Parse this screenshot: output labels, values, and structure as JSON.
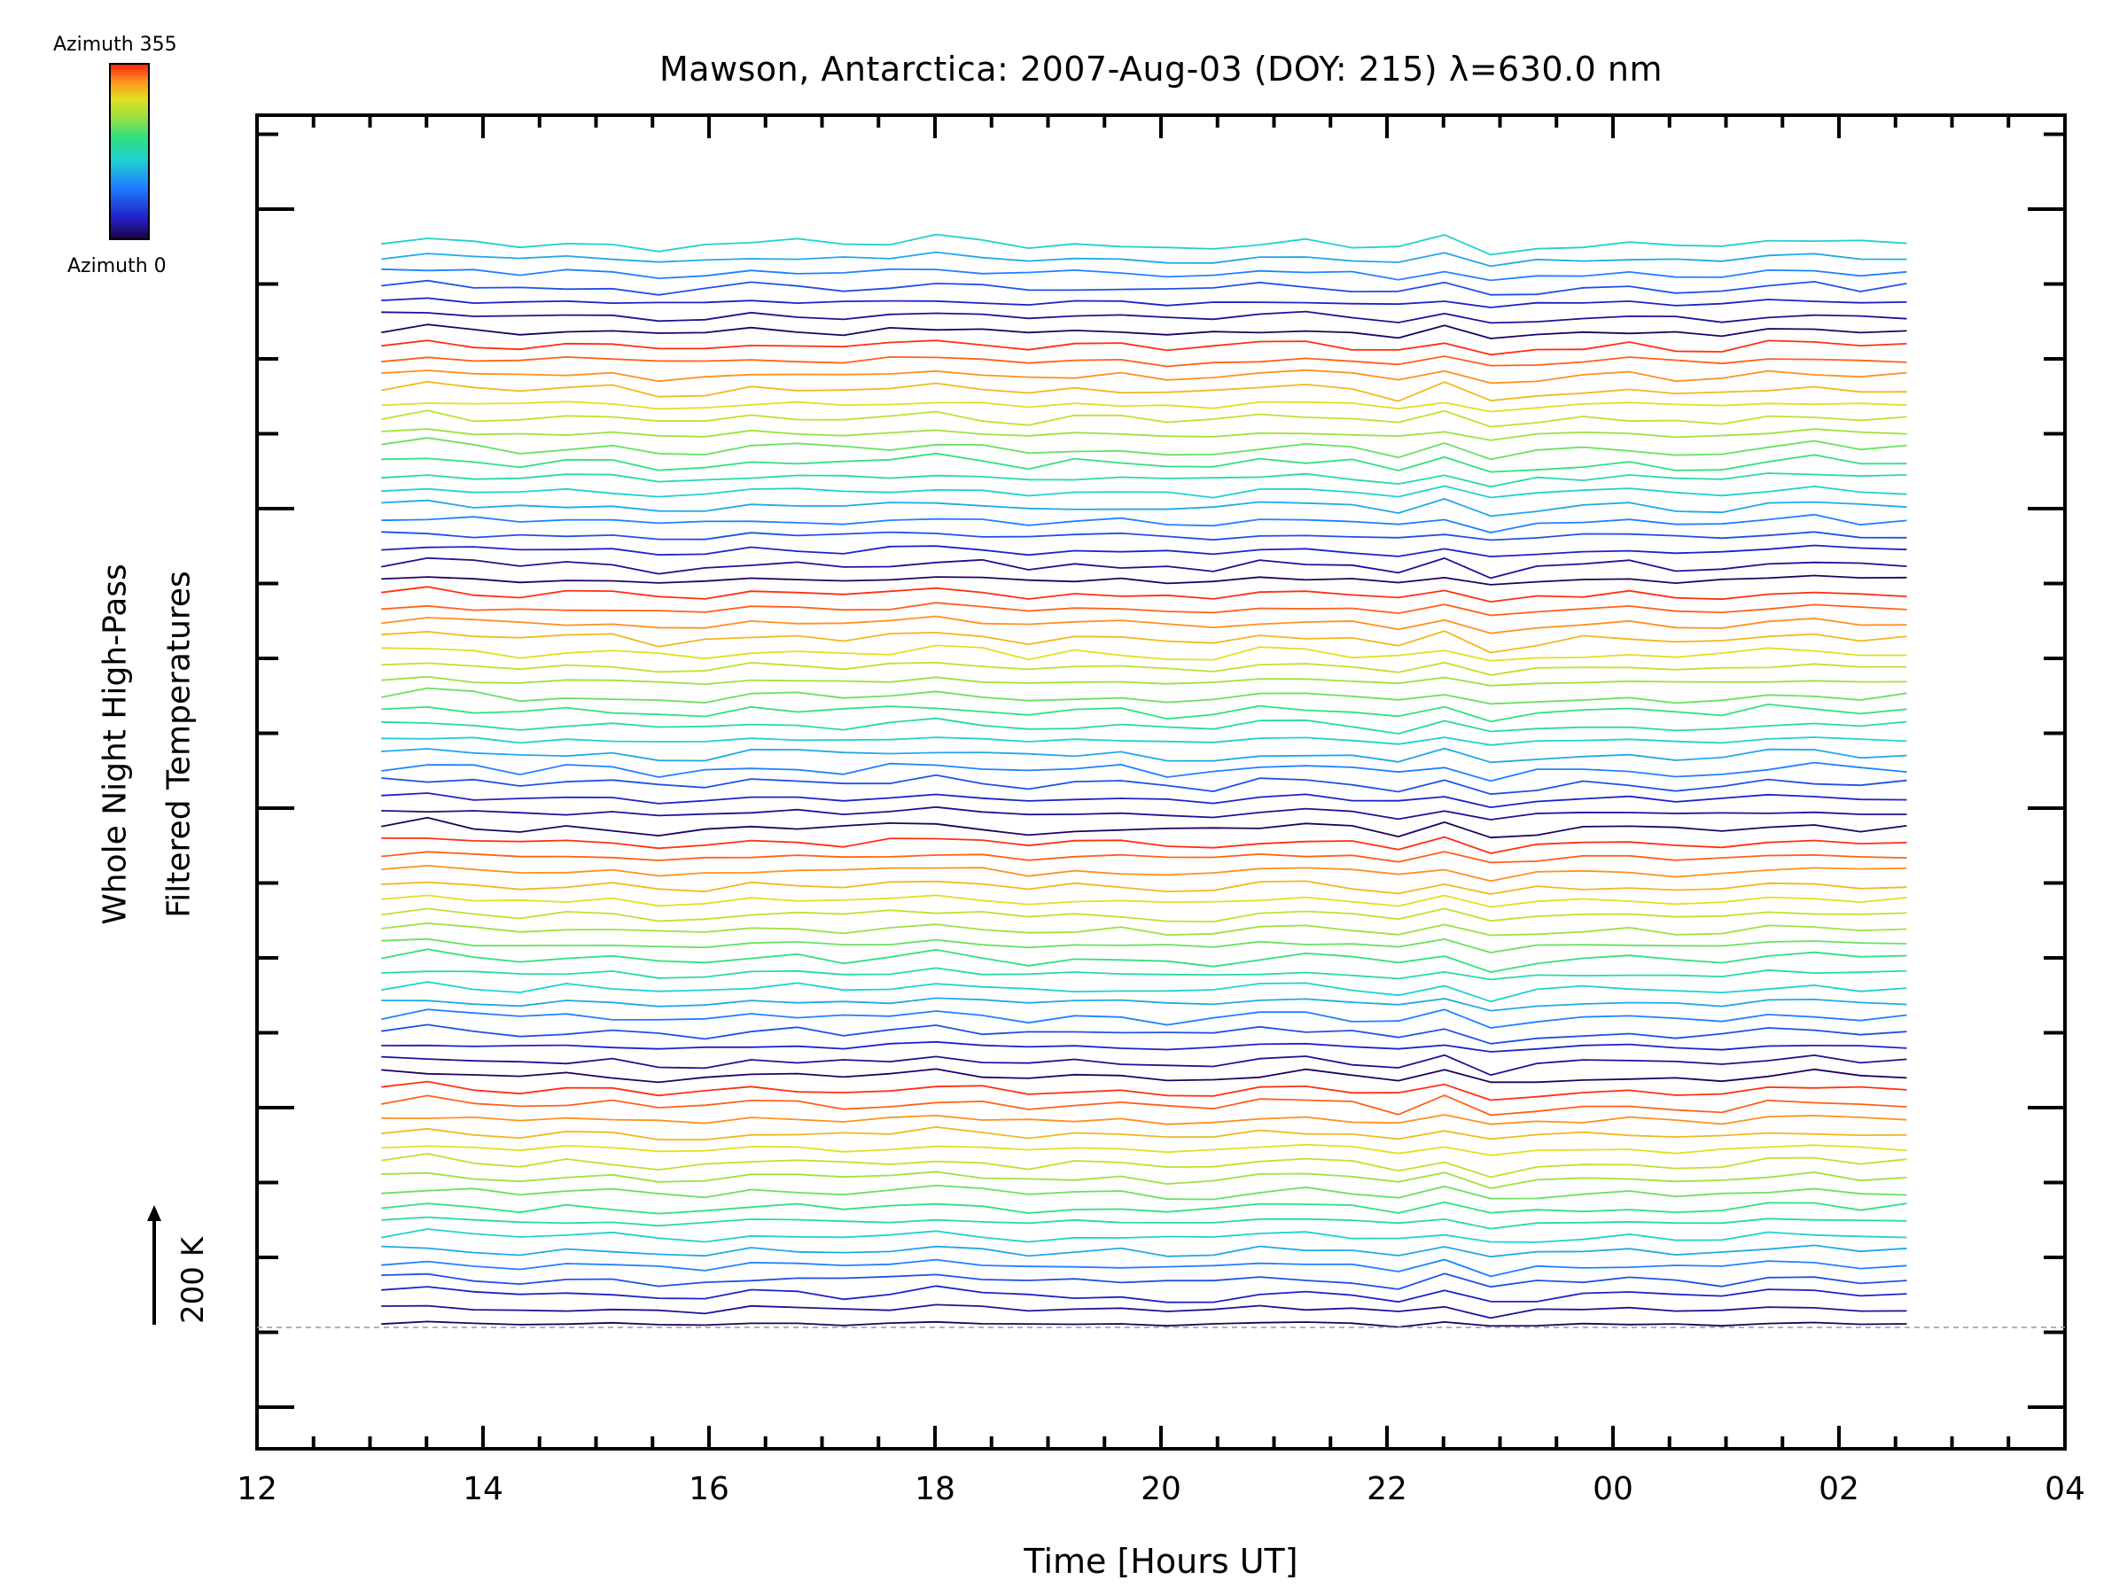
{
  "chart_data": {
    "type": "line",
    "title": "Mawson, Antarctica: 2007-Aug-03 (DOY: 215) λ=630.0 nm",
    "xlabel": "Time [Hours UT]",
    "ylabel": [
      "Whole Night High-Pass",
      "Filtered Temperatures"
    ],
    "x_tick_labels": [
      "12",
      "14",
      "16",
      "18",
      "20",
      "22",
      "00",
      "02",
      "04"
    ],
    "xlim": [
      12,
      28
    ],
    "x_range_hours": [
      13.1,
      26.6
    ],
    "scale_bar": "200 K",
    "colorbar": {
      "top_label": "Azimuth 355",
      "bottom_label": "Azimuth 0"
    },
    "series_count": 75,
    "series_description": "Stacked time series, one per look direction; line colour encodes azimuth (0–355) on a rainbow scale",
    "grid": false
  },
  "colors": {
    "azimuth_scale": [
      "#200060",
      "#2020c8",
      "#2080ff",
      "#20d0d0",
      "#30e080",
      "#a0e040",
      "#e0e020",
      "#ff9020",
      "#ff3010"
    ],
    "axis": "#000000"
  }
}
